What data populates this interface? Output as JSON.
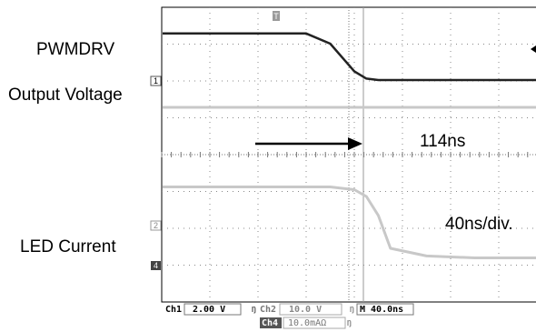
{
  "chart_data": {
    "type": "line",
    "xlabel": "",
    "ylabel": "",
    "trigger_marker": "T",
    "time_per_div_label": "40ns/div.",
    "x": [
      -160,
      -80,
      -40,
      -20,
      0,
      10,
      20,
      30,
      60,
      100,
      160,
      240
    ],
    "series": [
      {
        "name": "PWMDRV",
        "channel": "1",
        "volts_per_div": "2.00 V",
        "color": "#222222",
        "values": [
          1.6,
          1.6,
          1.6,
          1.25,
          0.3,
          0.05,
          0.0,
          0.0,
          0.0,
          0.0,
          0.0,
          0.0
        ]
      },
      {
        "name": "Output Voltage",
        "channel": "2",
        "volts_per_div": "10.0 V",
        "color": "#c8c8c8",
        "values": [
          0.0,
          0.0,
          0.0,
          0.0,
          0.0,
          0.0,
          0.0,
          0.0,
          0.0,
          0.0,
          0.0,
          0.0
        ]
      },
      {
        "name": "LED Current",
        "channel": "4",
        "volts_per_div": "10.0mAΩ",
        "color": "#c8c8c8",
        "values": [
          2.65,
          2.65,
          2.65,
          2.65,
          2.55,
          2.3,
          1.6,
          0.4,
          0.12,
          0.05,
          0.05,
          0.05
        ]
      }
    ],
    "annotation": {
      "text": "114ns",
      "start_x": -40,
      "end_x": 74
    }
  },
  "labels": {
    "pwmdrv": "PWMDRV",
    "output_voltage": "Output Voltage",
    "led_current": "LED Current",
    "delay": "114ns",
    "timebase": "40ns/div."
  },
  "status_bar": {
    "ch1": "Ch1",
    "ch1_scale": "2.00 V",
    "ch2": "Ch2",
    "ch2_scale": "10.0 V",
    "timebase": "M 40.0ns",
    "ch4": "Ch4",
    "ch4_scale": "10.0mAΩ"
  },
  "markers": {
    "ch1": "1",
    "ch2": "2",
    "ch4": "4",
    "trigger": "T"
  }
}
